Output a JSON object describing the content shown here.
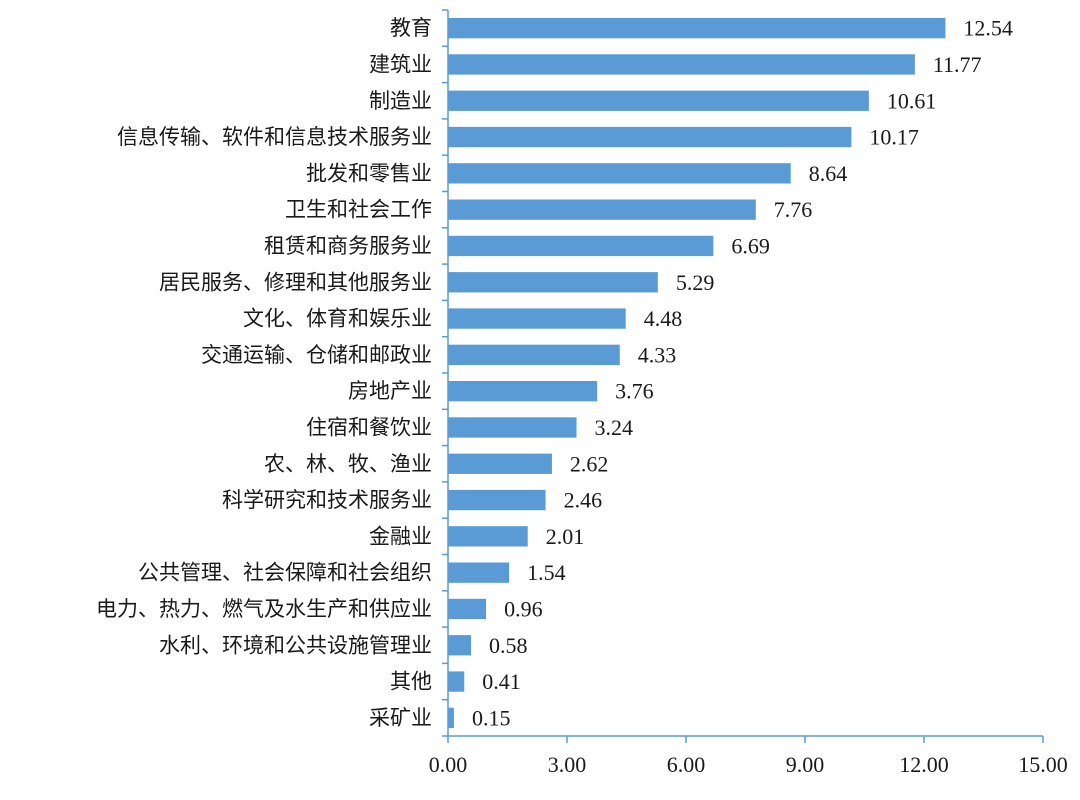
{
  "chart_data": {
    "type": "bar",
    "orientation": "horizontal",
    "title": "",
    "xlabel": "",
    "ylabel": "",
    "xlim": [
      0,
      15
    ],
    "x_ticks": [
      0,
      3,
      6,
      9,
      12,
      15
    ],
    "x_tick_labels": [
      "0.00",
      "3.00",
      "6.00",
      "9.00",
      "12.00",
      "15.00"
    ],
    "grid": false,
    "legend": "none",
    "bar_color": "#5b9bd5",
    "axis_color": "#5b9bd5",
    "categories": [
      "教育",
      "建筑业",
      "制造业",
      "信息传输、软件和信息技术服务业",
      "批发和零售业",
      "卫生和社会工作",
      "租赁和商务服务业",
      "居民服务、修理和其他服务业",
      "文化、体育和娱乐业",
      "交通运输、仓储和邮政业",
      "房地产业",
      "住宿和餐饮业",
      "农、林、牧、渔业",
      "科学研究和技术服务业",
      "金融业",
      "公共管理、社会保障和社会组织",
      "电力、热力、燃气及水生产和供应业",
      "水利、环境和公共设施管理业",
      "其他",
      "采矿业"
    ],
    "values": [
      12.54,
      11.77,
      10.61,
      10.17,
      8.64,
      7.76,
      6.69,
      5.29,
      4.48,
      4.33,
      3.76,
      3.24,
      2.62,
      2.46,
      2.01,
      1.54,
      0.96,
      0.58,
      0.41,
      0.15
    ],
    "value_labels": [
      "12.54",
      "11.77",
      "10.61",
      "10.17",
      "8.64",
      "7.76",
      "6.69",
      "5.29",
      "4.48",
      "4.33",
      "3.76",
      "3.24",
      "2.62",
      "2.46",
      "2.01",
      "1.54",
      "0.96",
      "0.58",
      "0.41",
      "0.15"
    ]
  }
}
